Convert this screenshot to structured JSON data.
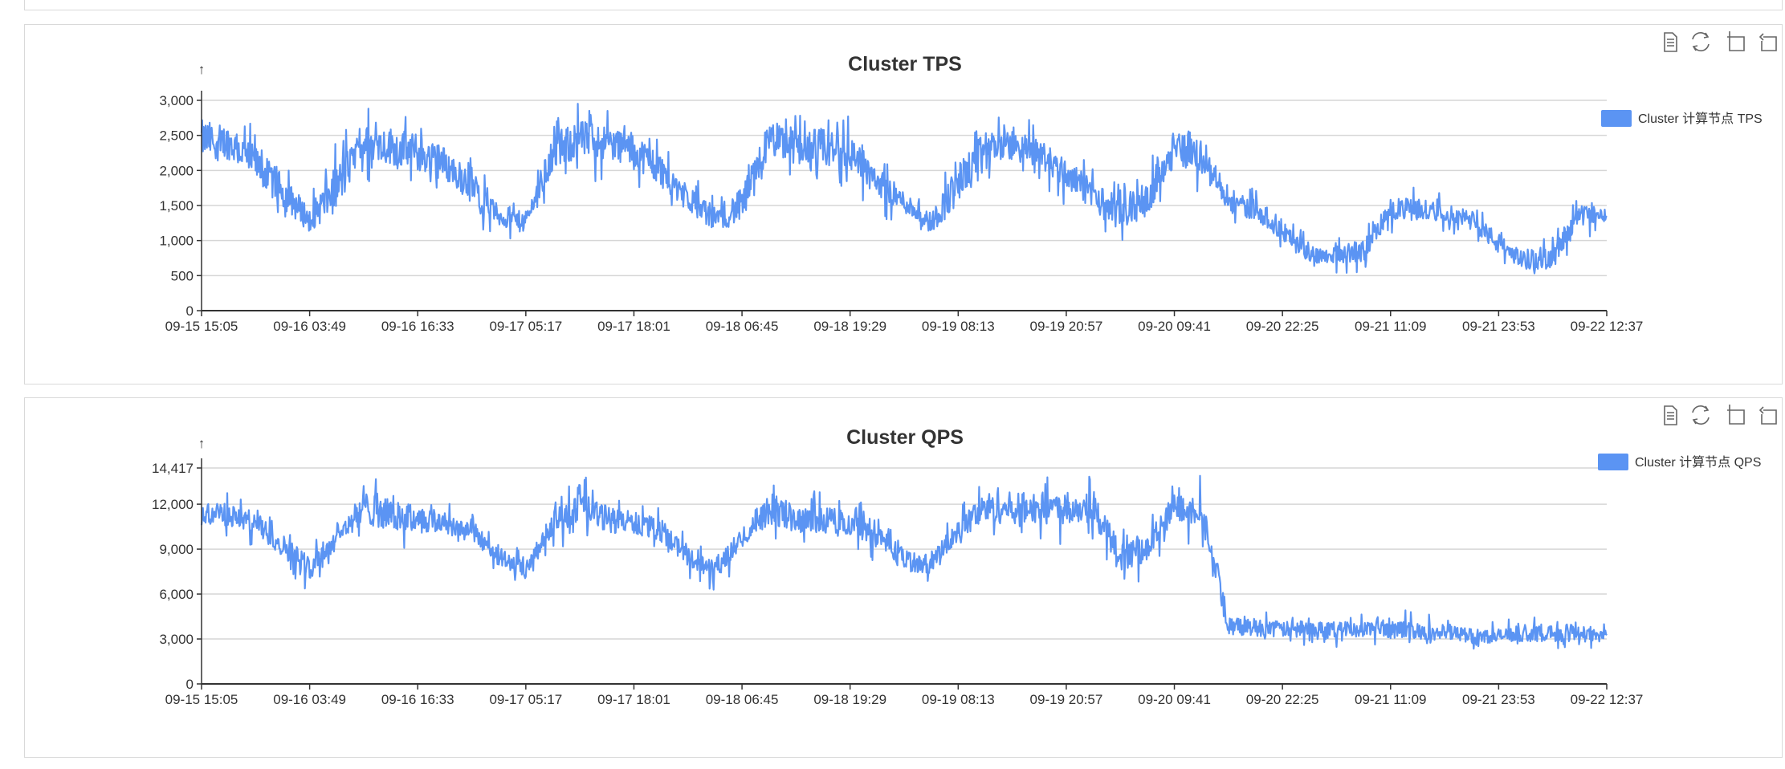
{
  "toolbox": {
    "icons": [
      "data-view-icon",
      "restore-icon",
      "zoom-icon",
      "zoom-reset-icon"
    ]
  },
  "chart_data": [
    {
      "type": "line",
      "title": "Cluster TPS",
      "legend": [
        "Cluster 计算节点 TPS"
      ],
      "legend_position": "top-right",
      "color": "#5b94f3",
      "grid": true,
      "ylim": [
        0,
        3000
      ],
      "yticks": [
        "0",
        "500",
        "1,000",
        "1,500",
        "2,000",
        "2,500",
        "3,000"
      ],
      "ytick_values": [
        0,
        500,
        1000,
        1500,
        2000,
        2500,
        3000
      ],
      "xticks": [
        "09-15 15:05",
        "09-16 03:49",
        "09-16 16:33",
        "09-17 05:17",
        "09-17 18:01",
        "09-18 06:45",
        "09-18 19:29",
        "09-19 08:13",
        "09-19 20:57",
        "09-20 09:41",
        "09-20 22:25",
        "09-21 11:09",
        "09-21 23:53",
        "09-22 12:37"
      ],
      "series": [
        {
          "name": "Cluster 计算节点 TPS",
          "envelope_low": [
            2000,
            2000,
            1700,
            1300,
            1000,
            1200,
            2000,
            1900,
            1800,
            1700,
            1400,
            1100,
            1000,
            1800,
            2000,
            2000,
            1900,
            1600,
            1300,
            1000,
            1100,
            2000,
            1900,
            1800,
            1800,
            1500,
            1300,
            1000,
            1300,
            2000,
            2000,
            1900,
            1600,
            1300,
            1000,
            1200,
            1900,
            1800,
            1300,
            1200,
            900,
            600,
            600,
            600,
            1200,
            1200,
            1200,
            1100,
            700,
            500,
            500,
            1100,
            1200
          ],
          "envelope_high": [
            2900,
            2800,
            2500,
            2100,
            1600,
            2300,
            2800,
            2800,
            2700,
            2500,
            2100,
            1600,
            1500,
            2700,
            2900,
            2800,
            2700,
            2400,
            1900,
            1600,
            1900,
            2900,
            2800,
            2800,
            2700,
            2200,
            1800,
            1500,
            2300,
            2700,
            2700,
            2600,
            2300,
            2000,
            1700,
            2000,
            2800,
            2600,
            1700,
            1700,
            1400,
            1000,
            1000,
            1100,
            1700,
            1700,
            1600,
            1500,
            1200,
            900,
            1000,
            1600,
            1500
          ]
        }
      ]
    },
    {
      "type": "line",
      "title": "Cluster QPS",
      "legend": [
        "Cluster 计算节点 QPS"
      ],
      "legend_position": "top-right",
      "color": "#5b94f3",
      "grid": true,
      "ylim": [
        0,
        14417
      ],
      "yticks": [
        "0",
        "3,000",
        "6,000",
        "9,000",
        "12,000",
        "14,417"
      ],
      "ytick_values": [
        0,
        3000,
        6000,
        9000,
        12000,
        14417
      ],
      "xticks": [
        "09-15 15:05",
        "09-16 03:49",
        "09-16 16:33",
        "09-17 05:17",
        "09-17 18:01",
        "09-18 06:45",
        "09-18 19:29",
        "09-19 08:13",
        "09-19 20:57",
        "09-20 09:41",
        "09-20 22:25",
        "09-21 11:09",
        "09-21 23:53",
        "09-22 12:37"
      ],
      "series": [
        {
          "name": "Cluster 计算节点 QPS",
          "envelope_low": [
            10000,
            10000,
            9500,
            8000,
            6500,
            8500,
            10000,
            9500,
            9500,
            9500,
            9000,
            7500,
            6500,
            9500,
            10000,
            9500,
            9500,
            9000,
            7500,
            6500,
            8500,
            10000,
            9500,
            9500,
            9500,
            8500,
            7000,
            7000,
            9000,
            10000,
            10000,
            10000,
            10000,
            10000,
            7000,
            7500,
            10000,
            10000,
            2800,
            2800,
            2800,
            2800,
            2800,
            2800,
            2600,
            2600,
            2500,
            2400,
            2400,
            2500,
            2500,
            2400,
            2500
          ],
          "envelope_high": [
            13000,
            12500,
            12000,
            10500,
            9000,
            11000,
            13500,
            13000,
            12500,
            12000,
            11500,
            9500,
            8500,
            12000,
            13500,
            12500,
            12000,
            11500,
            9500,
            8500,
            11000,
            13500,
            12500,
            12500,
            12000,
            11500,
            9500,
            9000,
            11500,
            13500,
            13500,
            13500,
            13500,
            13500,
            10000,
            10500,
            13500,
            13500,
            4800,
            4800,
            4500,
            4500,
            4500,
            4500,
            4800,
            4500,
            4300,
            4000,
            4000,
            4200,
            4200,
            4500,
            4000
          ]
        }
      ]
    }
  ]
}
